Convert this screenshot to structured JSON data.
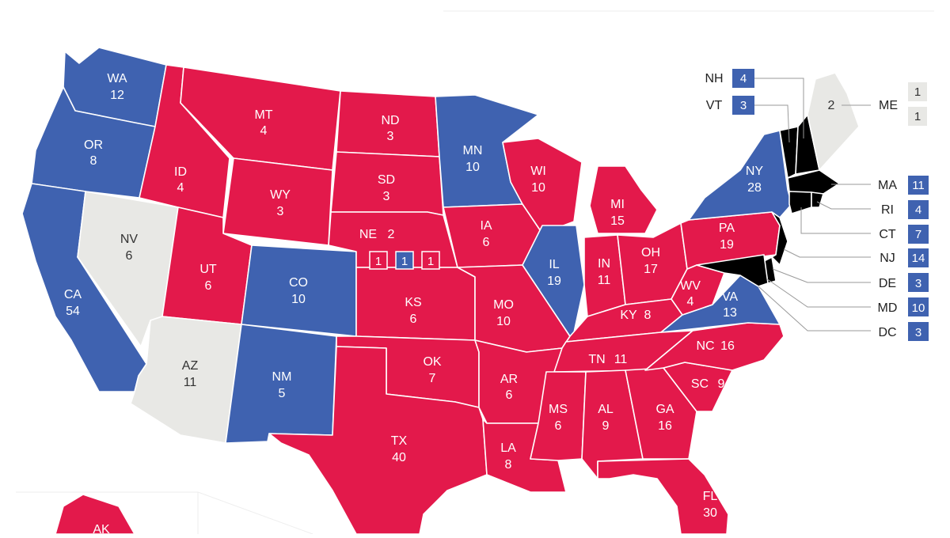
{
  "colors": {
    "dem": "#3f62b0",
    "rep": "#e3194b",
    "undecided": "#e8e8e5",
    "background": "#ffffff"
  },
  "states": {
    "WA": {
      "abbr": "WA",
      "ev": "12",
      "status": "dem"
    },
    "OR": {
      "abbr": "OR",
      "ev": "8",
      "status": "dem"
    },
    "CA": {
      "abbr": "CA",
      "ev": "54",
      "status": "dem"
    },
    "NV": {
      "abbr": "NV",
      "ev": "6",
      "status": "undecided"
    },
    "ID": {
      "abbr": "ID",
      "ev": "4",
      "status": "rep"
    },
    "MT": {
      "abbr": "MT",
      "ev": "4",
      "status": "rep"
    },
    "WY": {
      "abbr": "WY",
      "ev": "3",
      "status": "rep"
    },
    "UT": {
      "abbr": "UT",
      "ev": "6",
      "status": "rep"
    },
    "AZ": {
      "abbr": "AZ",
      "ev": "11",
      "status": "undecided"
    },
    "CO": {
      "abbr": "CO",
      "ev": "10",
      "status": "dem"
    },
    "NM": {
      "abbr": "NM",
      "ev": "5",
      "status": "dem"
    },
    "ND": {
      "abbr": "ND",
      "ev": "3",
      "status": "rep"
    },
    "SD": {
      "abbr": "SD",
      "ev": "3",
      "status": "rep"
    },
    "NE": {
      "abbr": "NE",
      "ev": "2",
      "status": "rep"
    },
    "KS": {
      "abbr": "KS",
      "ev": "6",
      "status": "rep"
    },
    "OK": {
      "abbr": "OK",
      "ev": "7",
      "status": "rep"
    },
    "TX": {
      "abbr": "TX",
      "ev": "40",
      "status": "rep"
    },
    "MN": {
      "abbr": "MN",
      "ev": "10",
      "status": "dem"
    },
    "IA": {
      "abbr": "IA",
      "ev": "6",
      "status": "rep"
    },
    "MO": {
      "abbr": "MO",
      "ev": "10",
      "status": "rep"
    },
    "AR": {
      "abbr": "AR",
      "ev": "6",
      "status": "rep"
    },
    "LA": {
      "abbr": "LA",
      "ev": "8",
      "status": "rep"
    },
    "WI": {
      "abbr": "WI",
      "ev": "10",
      "status": "rep"
    },
    "IL": {
      "abbr": "IL",
      "ev": "19",
      "status": "dem"
    },
    "MI": {
      "abbr": "MI",
      "ev": "15",
      "status": "rep"
    },
    "IN": {
      "abbr": "IN",
      "ev": "11",
      "status": "rep"
    },
    "OH": {
      "abbr": "OH",
      "ev": "17",
      "status": "rep"
    },
    "KY": {
      "abbr": "KY",
      "ev": "8",
      "status": "rep"
    },
    "TN": {
      "abbr": "TN",
      "ev": "11",
      "status": "rep"
    },
    "MS": {
      "abbr": "MS",
      "ev": "6",
      "status": "rep"
    },
    "AL": {
      "abbr": "AL",
      "ev": "9",
      "status": "rep"
    },
    "GA": {
      "abbr": "GA",
      "ev": "16",
      "status": "rep"
    },
    "FL": {
      "abbr": "FL",
      "ev": "30",
      "status": "rep"
    },
    "SC": {
      "abbr": "SC",
      "ev": "9",
      "status": "rep"
    },
    "NC": {
      "abbr": "NC",
      "ev": "16",
      "status": "rep"
    },
    "VA": {
      "abbr": "VA",
      "ev": "13",
      "status": "dem"
    },
    "WV": {
      "abbr": "WV",
      "ev": "4",
      "status": "rep"
    },
    "PA": {
      "abbr": "PA",
      "ev": "19",
      "status": "rep"
    },
    "NY": {
      "abbr": "NY",
      "ev": "28",
      "status": "dem"
    },
    "ME": {
      "abbr": "ME",
      "ev": "2",
      "status": "undecided"
    },
    "AK": {
      "abbr": "AK",
      "status": "rep"
    }
  },
  "ne_districts": [
    {
      "value": "1",
      "status": "rep"
    },
    {
      "value": "1",
      "status": "dem"
    },
    {
      "value": "1",
      "status": "rep"
    }
  ],
  "me_districts": [
    {
      "value": "1",
      "status": "undecided"
    },
    {
      "value": "1",
      "status": "undecided"
    }
  ],
  "northeast_callouts": [
    {
      "abbr": "NH",
      "ev": "4",
      "status": "dem"
    },
    {
      "abbr": "VT",
      "ev": "3",
      "status": "dem"
    }
  ],
  "east_callouts": [
    {
      "abbr": "MA",
      "ev": "11",
      "status": "dem"
    },
    {
      "abbr": "RI",
      "ev": "4",
      "status": "dem"
    },
    {
      "abbr": "CT",
      "ev": "7",
      "status": "dem"
    },
    {
      "abbr": "NJ",
      "ev": "14",
      "status": "dem"
    },
    {
      "abbr": "DE",
      "ev": "3",
      "status": "dem"
    },
    {
      "abbr": "MD",
      "ev": "10",
      "status": "dem"
    },
    {
      "abbr": "DC",
      "ev": "3",
      "status": "dem"
    }
  ]
}
